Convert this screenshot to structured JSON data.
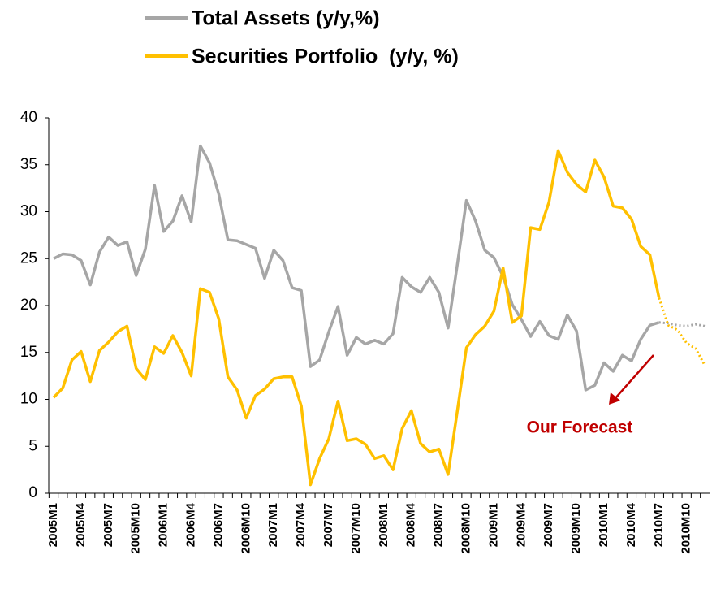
{
  "chart_data": {
    "type": "line",
    "categories": [
      "2005M1",
      null,
      null,
      "2005M4",
      null,
      null,
      "2005M7",
      null,
      null,
      "2005M10",
      null,
      null,
      "2006M1",
      null,
      null,
      "2006M4",
      null,
      null,
      "2006M7",
      null,
      null,
      "2006M10",
      null,
      null,
      "2007M1",
      null,
      null,
      "2007M4",
      null,
      null,
      "2007M7",
      null,
      null,
      "2007M10",
      null,
      null,
      "2008M1",
      null,
      null,
      "2008M4",
      null,
      null,
      "2008M7",
      null,
      null,
      "2008M10",
      null,
      null,
      "2009M1",
      null,
      null,
      "2009M4",
      null,
      null,
      "2009M7",
      null,
      null,
      "2009M10",
      null,
      null,
      "2010M1",
      null,
      null,
      "2010M4",
      null,
      null,
      "2010M7",
      null,
      null,
      "2010M10",
      null,
      null
    ],
    "series": [
      {
        "name": "Total Assets (y/y,%)",
        "color": "#a6a6a6",
        "values": [
          25,
          25.5,
          25.4,
          24.8,
          22.2,
          25.7,
          27.3,
          26.4,
          26.8,
          23.2,
          26,
          32.8,
          27.9,
          29,
          31.7,
          28.9,
          37,
          35.2,
          31.9,
          27,
          26.9,
          26.5,
          26.1,
          22.9,
          25.9,
          24.8,
          21.9,
          21.6,
          13.5,
          14.2,
          17.2,
          19.9,
          14.7,
          16.6,
          15.9,
          16.3,
          15.9,
          17,
          23,
          22,
          21.4,
          23,
          21.4,
          17.6,
          24.3,
          31.2,
          29,
          25.9,
          25.1,
          23.1,
          20.1,
          18.5,
          16.7,
          18.3,
          16.8,
          16.4,
          19,
          17.3,
          11,
          11.5,
          13.9,
          13,
          14.7,
          14.1,
          16.4,
          17.9,
          18.2,
          18.1,
          17.9,
          17.8,
          18,
          17.8
        ]
      },
      {
        "name": "Securities Portfolio  (y/y, %)",
        "color": "#ffc000",
        "values": [
          10.2,
          11.2,
          14.2,
          15.1,
          11.9,
          15.2,
          16.1,
          17.2,
          17.8,
          13.3,
          12.1,
          15.6,
          14.9,
          16.8,
          15,
          12.5,
          21.8,
          21.4,
          18.6,
          12.4,
          11,
          8,
          10.4,
          11.1,
          12.2,
          12.4,
          12.4,
          9.3,
          0.9,
          3.7,
          5.8,
          9.8,
          5.6,
          5.8,
          5.2,
          3.7,
          4,
          2.5,
          6.9,
          8.8,
          5.3,
          4.4,
          4.7,
          2,
          8.7,
          15.5,
          16.9,
          17.8,
          19.4,
          24,
          18.2,
          18.9,
          28.3,
          28.1,
          31,
          36.5,
          34.2,
          32.9,
          32.1,
          35.5,
          33.7,
          30.6,
          30.4,
          29.2,
          26.3,
          25.4,
          20.8,
          17.9,
          17.4,
          16,
          15.4,
          13.6
        ]
      }
    ],
    "forecast_from": "2010M7",
    "annotation": "Our Forecast",
    "annotation_color": "#c00000",
    "ylim": [
      0,
      40
    ],
    "yticks": [
      0,
      5,
      10,
      15,
      20,
      25,
      30,
      35,
      40
    ],
    "grid": false,
    "legend": "top"
  }
}
